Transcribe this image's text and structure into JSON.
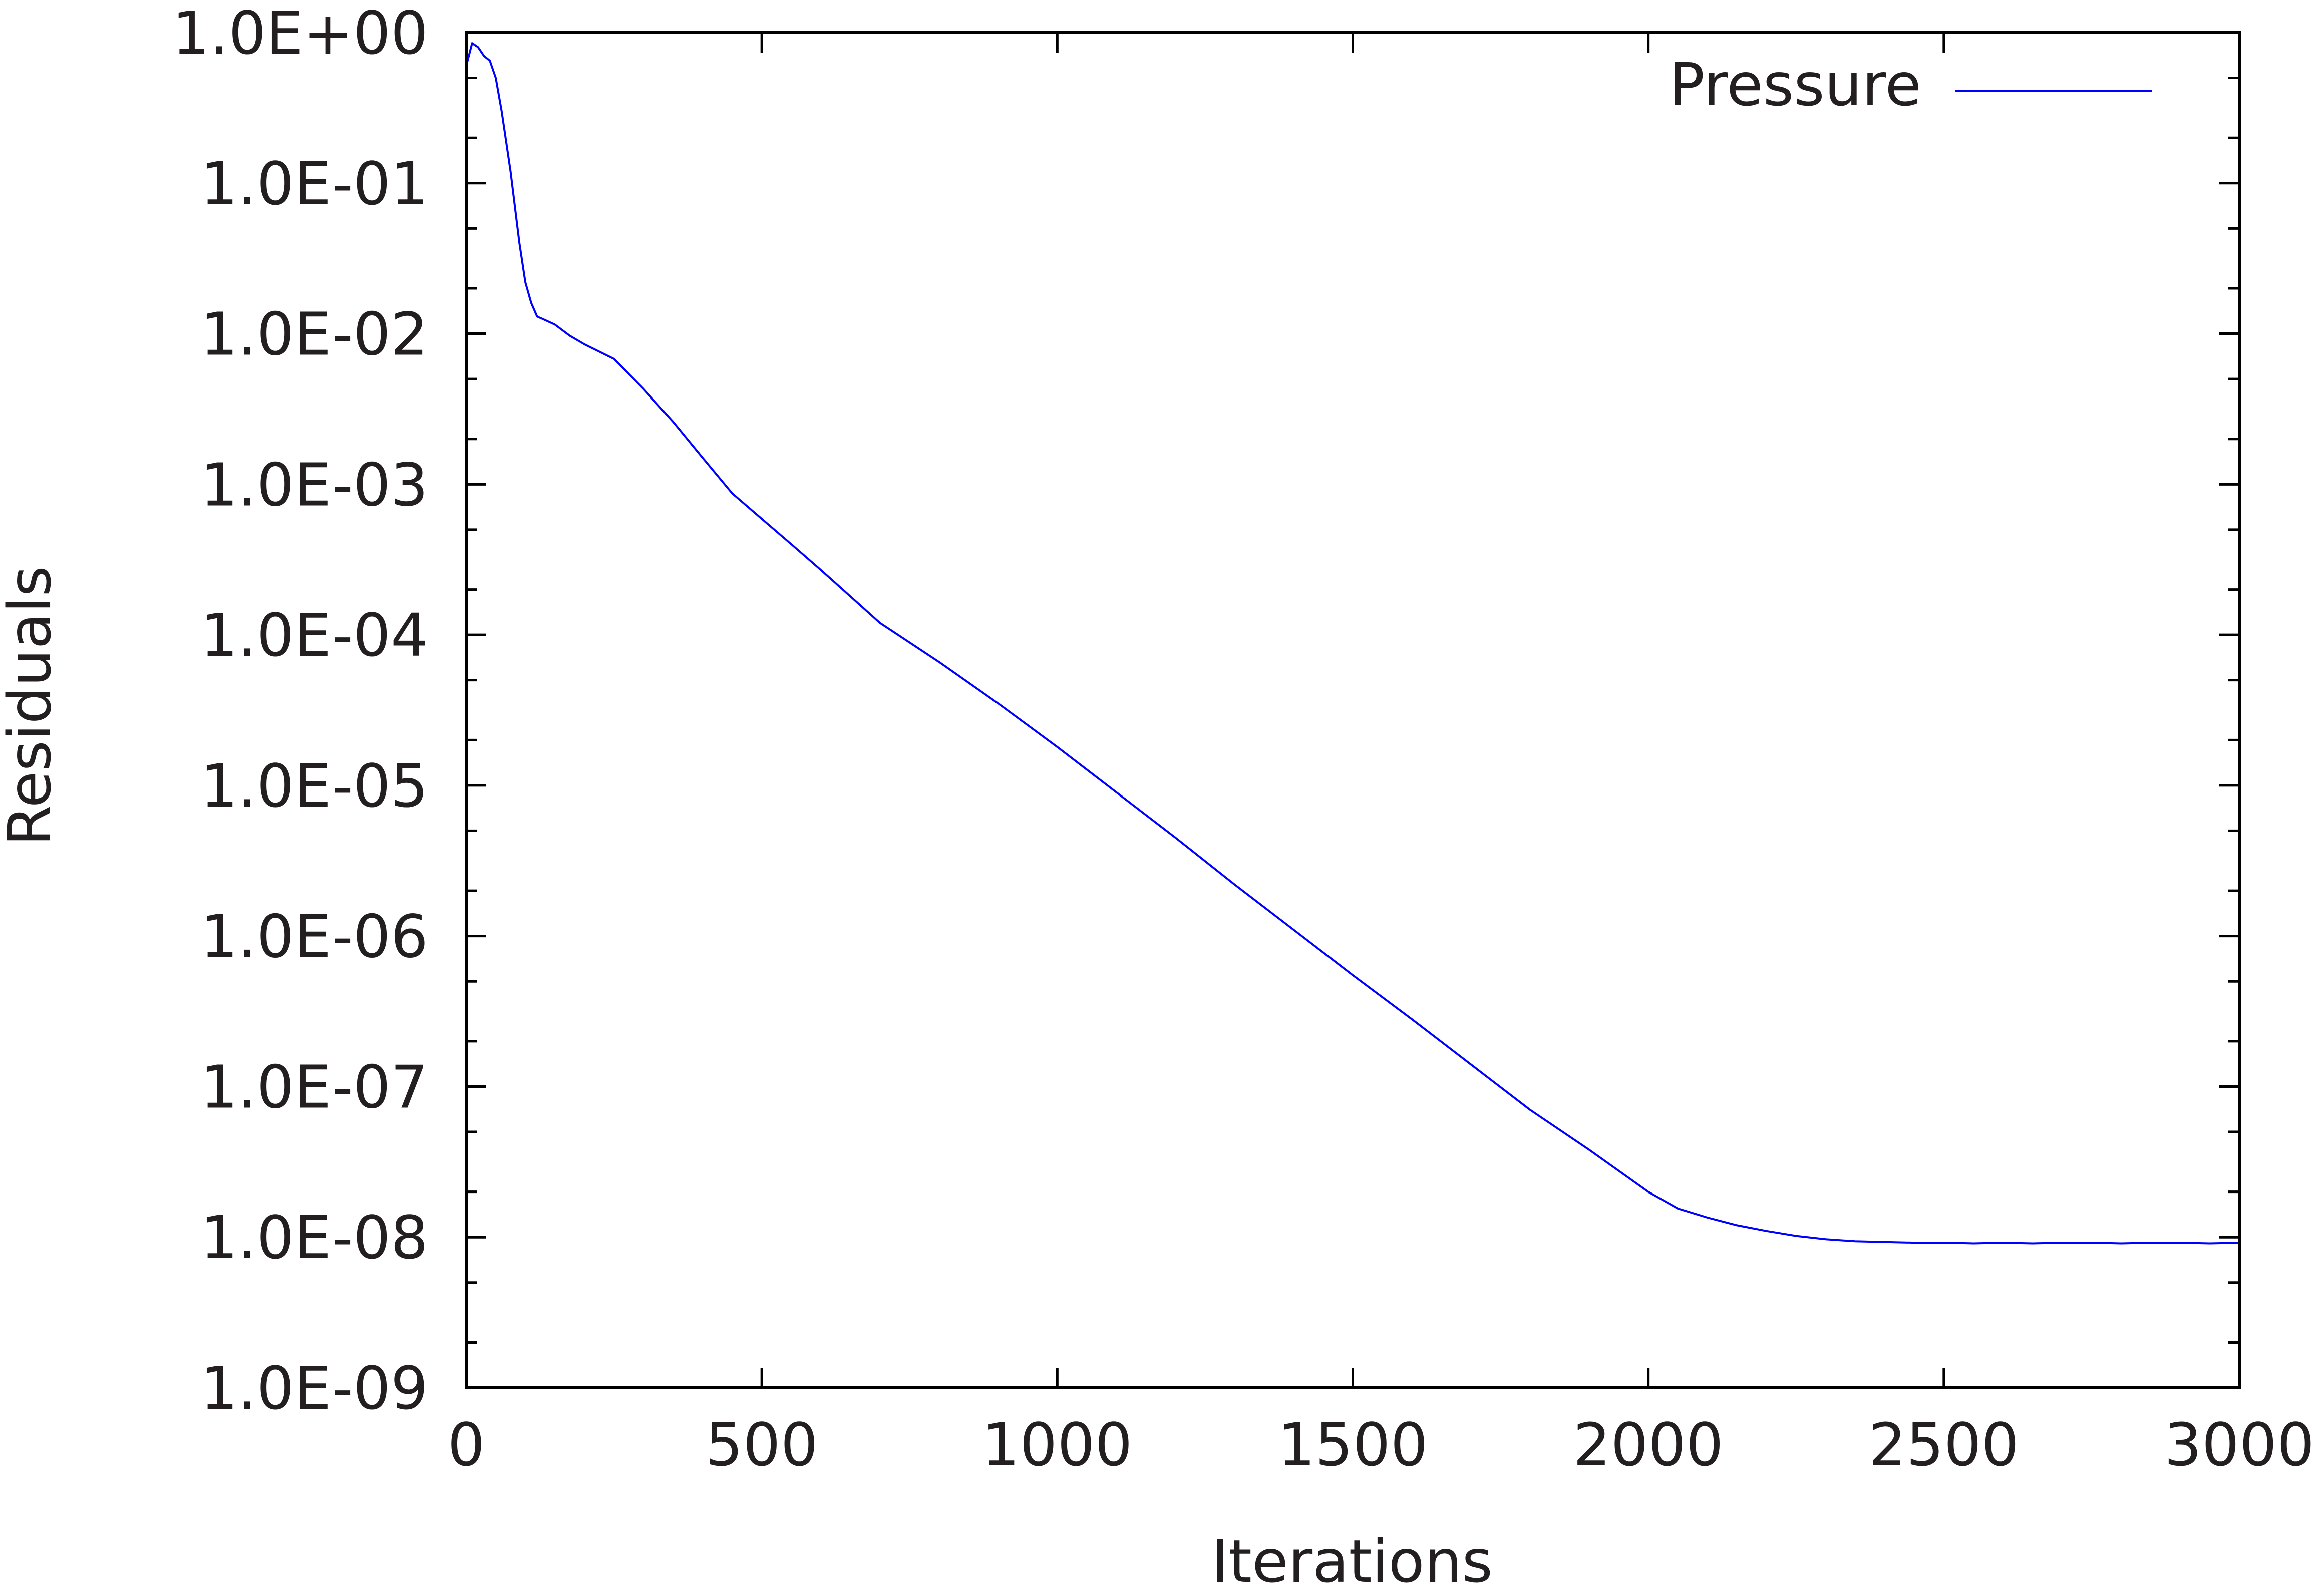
{
  "chart_data": {
    "type": "line",
    "xlabel": "Iterations",
    "ylabel": "Residuals",
    "xlim": [
      0,
      3000
    ],
    "ylim": [
      1e-09,
      1
    ],
    "yscale": "log",
    "grid": false,
    "legend_position": "top-right",
    "x_ticks": [
      "0",
      "500",
      "1000",
      "1500",
      "2000",
      "2500",
      "3000"
    ],
    "x_tick_values": [
      0,
      500,
      1000,
      1500,
      2000,
      2500,
      3000
    ],
    "y_ticks": [
      "1.0E+00",
      "1.0E-01",
      "1.0E-02",
      "1.0E-03",
      "1.0E-04",
      "1.0E-05",
      "1.0E-06",
      "1.0E-07",
      "1.0E-08",
      "1.0E-09"
    ],
    "y_tick_values": [
      1,
      0.1,
      0.01,
      0.001,
      0.0001,
      1e-05,
      1e-06,
      1e-07,
      1e-08,
      1e-09
    ],
    "series": [
      {
        "name": "Pressure",
        "color": "#0000ff",
        "x": [
          0,
          10,
          20,
          30,
          40,
          50,
          60,
          75,
          90,
          100,
          110,
          120,
          130,
          150,
          175,
          200,
          250,
          300,
          350,
          400,
          450,
          500,
          550,
          600,
          650,
          700,
          800,
          900,
          1000,
          1100,
          1200,
          1300,
          1400,
          1500,
          1600,
          1700,
          1800,
          1900,
          2000,
          2050,
          2100,
          2150,
          2200,
          2250,
          2300,
          2350,
          2400,
          2450,
          2500,
          2550,
          2600,
          2650,
          2700,
          2750,
          2800,
          2850,
          2900,
          2950,
          3000
        ],
        "y": [
          0.6,
          0.85,
          0.8,
          0.7,
          0.65,
          0.5,
          0.3,
          0.12,
          0.04,
          0.022,
          0.016,
          0.013,
          0.0125,
          0.0115,
          0.0097,
          0.0085,
          0.0068,
          0.0043,
          0.0026,
          0.0015,
          0.00087,
          0.00059,
          0.0004,
          0.00027,
          0.00018,
          0.00012,
          6.6e-05,
          3.5e-05,
          1.8e-05,
          9e-06,
          4.5e-06,
          2.2e-06,
          1.1e-06,
          5.5e-07,
          2.8e-07,
          1.4e-07,
          7e-08,
          3.8e-08,
          2e-08,
          1.55e-08,
          1.35e-08,
          1.2e-08,
          1.1e-08,
          1.02e-08,
          9.7e-09,
          9.4e-09,
          9.3e-09,
          9.2e-09,
          9.2e-09,
          9.1e-09,
          9.2e-09,
          9.1e-09,
          9.2e-09,
          9.2e-09,
          9.1e-09,
          9.2e-09,
          9.2e-09,
          9.1e-09,
          9.2e-09
        ]
      }
    ]
  }
}
